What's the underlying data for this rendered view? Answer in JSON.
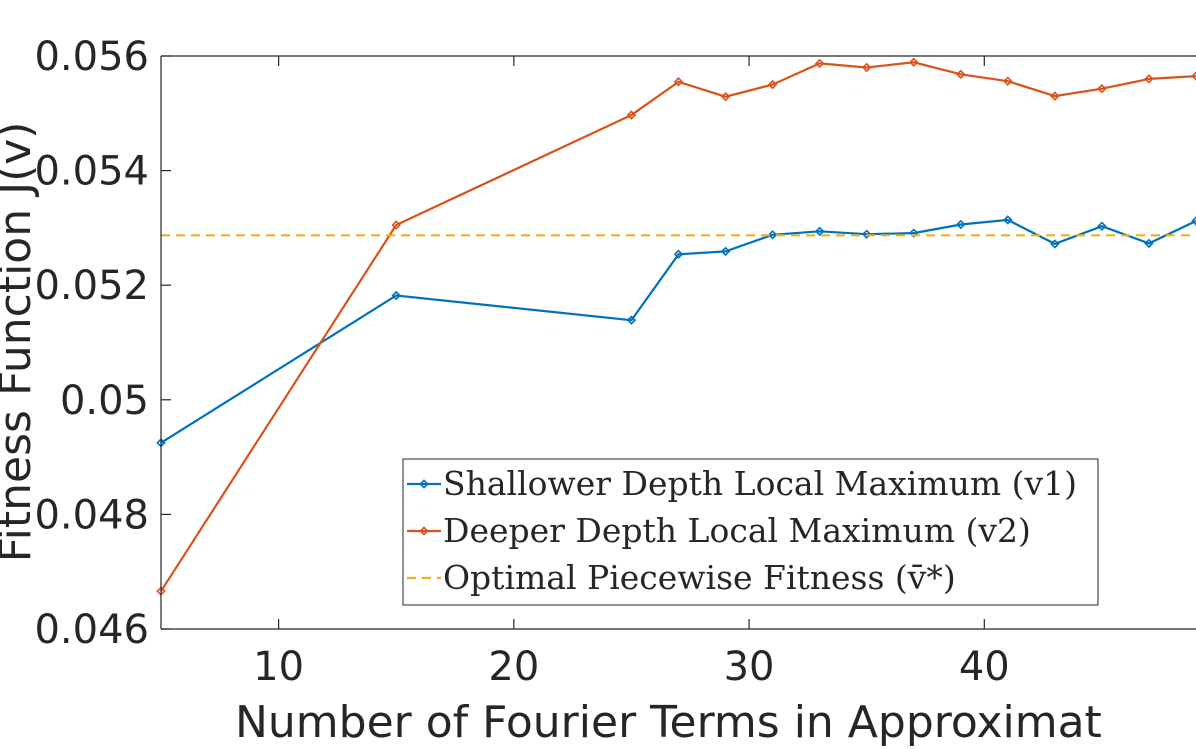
{
  "chart_data": {
    "type": "line",
    "xlabel": "Number of Fourier Terms in Approximat",
    "ylabel": "Fitness Function J(v)",
    "xlim": [
      5,
      49
    ],
    "ylim": [
      0.046,
      0.056
    ],
    "x_ticks": [
      10,
      20,
      30,
      40
    ],
    "x_tick_labels": [
      "10",
      "20",
      "30",
      "40"
    ],
    "y_ticks": [
      0.046,
      0.048,
      0.05,
      0.052,
      0.054,
      0.056
    ],
    "y_tick_labels": [
      "0.046",
      "0.048",
      "0.05",
      "0.052",
      "0.054",
      "0.056"
    ],
    "grid": false,
    "legend_position": "bottom-right",
    "series": [
      {
        "name": "Shallower Depth Local Maximum (v1)",
        "color": "#0072BD",
        "marker": "diamond",
        "style": "solid",
        "x": [
          5,
          15,
          25,
          27,
          29,
          31,
          33,
          35,
          37,
          39,
          41,
          43,
          45,
          47,
          49
        ],
        "y": [
          0.04925,
          0.05182,
          0.05139,
          0.05254,
          0.05259,
          0.05288,
          0.05294,
          0.05289,
          0.05291,
          0.05306,
          0.05314,
          0.05272,
          0.05303,
          0.05273,
          0.05312
        ]
      },
      {
        "name": "Deeper Depth Local Maximum (v2)",
        "color": "#D95319",
        "marker": "diamond",
        "style": "solid",
        "x": [
          5,
          15,
          25,
          27,
          29,
          31,
          33,
          35,
          37,
          39,
          41,
          43,
          45,
          47,
          49
        ],
        "y": [
          0.04666,
          0.05305,
          0.05497,
          0.05555,
          0.05529,
          0.0555,
          0.05587,
          0.0558,
          0.05589,
          0.05568,
          0.05556,
          0.0553,
          0.05543,
          0.0556,
          0.05565
        ]
      },
      {
        "name": "Optimal Piecewise Fitness (v̄*)",
        "color": "#EDB120",
        "style": "dashed",
        "x": [
          5,
          49
        ],
        "y": [
          0.05287,
          0.05287
        ]
      }
    ]
  }
}
